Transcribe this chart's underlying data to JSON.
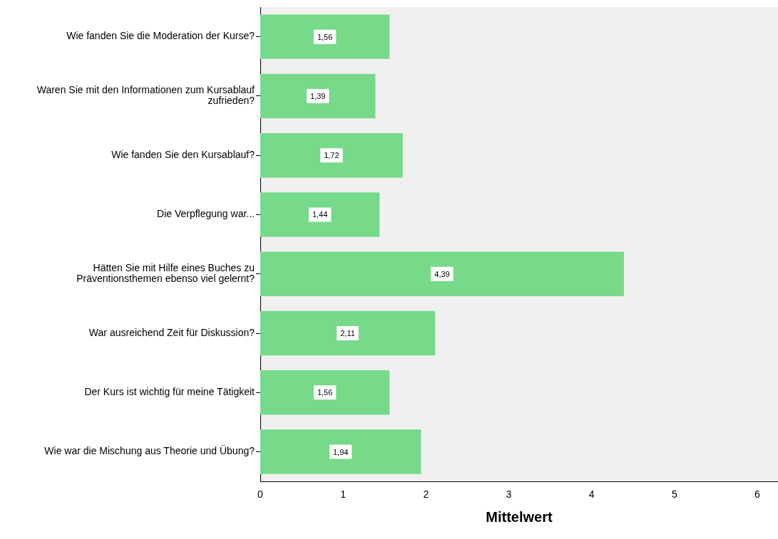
{
  "chart_data": {
    "type": "bar",
    "orientation": "horizontal",
    "xlabel": "Mittelwert",
    "categories": [
      "Wie fanden Sie die Moderation der Kurse?",
      "Waren Sie mit den Informationen zum Kursablauf zufrieden?",
      "Wie fanden Sie den Kursablauf?",
      "Die Verpflegung war...",
      "Hätten Sie mit Hilfe eines Buches zu Präventionsthemen ebenso viel gelernt?",
      "War ausreichend Zeit für Diskussion?",
      "Der Kurs ist wichtig für meine Tätigkeit",
      "Wie war die Mischung aus Theorie und Übung?"
    ],
    "values": [
      1.56,
      1.39,
      1.72,
      1.44,
      4.39,
      2.11,
      1.56,
      1.94
    ],
    "value_labels": [
      "1,56",
      "1,39",
      "1,72",
      "1,44",
      "4,39",
      "2,11",
      "1,56",
      "1,94"
    ],
    "color": "#77d98a",
    "xlim": [
      0,
      6.25
    ],
    "xticks": [
      0,
      1,
      2,
      3,
      4,
      5,
      6
    ],
    "grid": false,
    "legend": false
  }
}
